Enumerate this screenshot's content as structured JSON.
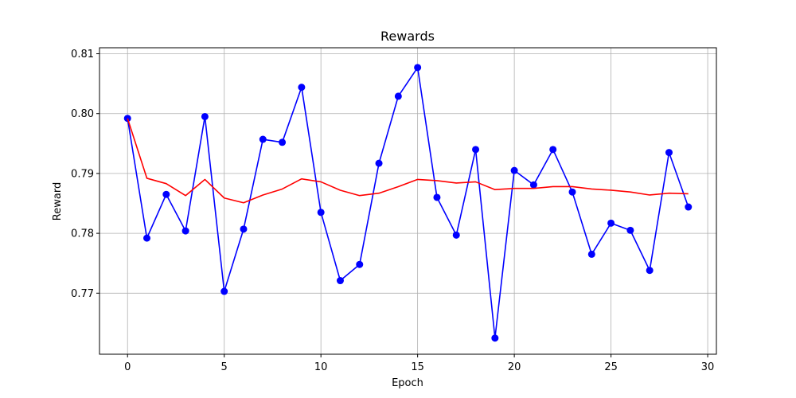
{
  "chart_data": {
    "type": "line",
    "title": "Rewards",
    "xlabel": "Epoch",
    "ylabel": "Reward",
    "xlim": [
      -1.45,
      30.45
    ],
    "ylim": [
      0.7598,
      0.811
    ],
    "xticks": [
      0,
      5,
      10,
      15,
      20,
      25,
      30
    ],
    "yticks": [
      0.77,
      0.78,
      0.79,
      0.8,
      0.81
    ],
    "ytick_labels": [
      "0.77",
      "0.78",
      "0.79",
      "0.80",
      "0.81"
    ],
    "grid": true,
    "series": [
      {
        "color": "#0000ff",
        "marker": "circle",
        "x": [
          0,
          1,
          2,
          3,
          4,
          5,
          6,
          7,
          8,
          9,
          10,
          11,
          12,
          13,
          14,
          15,
          16,
          17,
          18,
          19,
          20,
          21,
          22,
          23,
          24,
          25,
          26,
          27,
          28,
          29
        ],
        "values": [
          0.7992,
          0.7792,
          0.7865,
          0.7804,
          0.7995,
          0.7703,
          0.7807,
          0.7957,
          0.7952,
          0.8044,
          0.7835,
          0.7721,
          0.7748,
          0.7917,
          0.8029,
          0.8077,
          0.786,
          0.7797,
          0.794,
          0.7625,
          0.7905,
          0.7881,
          0.794,
          0.7869,
          0.7765,
          0.7817,
          0.7805,
          0.7738,
          0.7935,
          0.7844
        ]
      },
      {
        "color": "#ff0000",
        "marker": "none",
        "x": [
          0,
          1,
          2,
          3,
          4,
          5,
          6,
          7,
          8,
          9,
          10,
          11,
          12,
          13,
          14,
          15,
          16,
          17,
          18,
          19,
          20,
          21,
          22,
          23,
          24,
          25,
          26,
          27,
          28,
          29
        ],
        "values": [
          0.7992,
          0.7892,
          0.7883,
          0.7863,
          0.789,
          0.7859,
          0.7851,
          0.7864,
          0.7874,
          0.7891,
          0.7886,
          0.7872,
          0.7863,
          0.7867,
          0.7878,
          0.789,
          0.7888,
          0.7884,
          0.7886,
          0.7873,
          0.7875,
          0.7875,
          0.7878,
          0.7878,
          0.7874,
          0.7872,
          0.7869,
          0.7864,
          0.7867,
          0.7866
        ]
      }
    ]
  }
}
